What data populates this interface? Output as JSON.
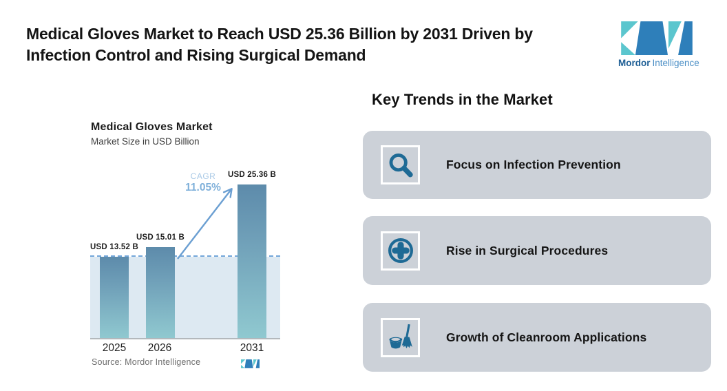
{
  "header": {
    "title": "Medical Gloves Market to Reach USD 25.36 Billion by 2031 Driven by Infection Control and Rising Surgical Demand",
    "title_lines": [
      "Medical Gloves Market to Reach USD 25.36 Billion by 2031 Driven by",
      "Infection Control and Rising Surgical Demand"
    ],
    "brand": {
      "bold": "Mordor",
      "light": "Intelligence"
    }
  },
  "chart": {
    "title": "Medical Gloves Market",
    "subtitle": "Market Size in USD Billion",
    "cagr_label": "CAGR",
    "cagr_value": "11.05%",
    "source": "Source: Mordor Intelligence",
    "bars": [
      {
        "year": "2025",
        "label": "USD 13.52 B",
        "value": 13.52
      },
      {
        "year": "2026",
        "label": "USD 15.01 B",
        "value": 15.01
      },
      {
        "year": "2031",
        "label": "USD 25.36 B",
        "value": 25.36
      }
    ]
  },
  "chart_data": {
    "type": "bar",
    "title": "Medical Gloves Market",
    "subtitle": "Market Size in USD Billion",
    "unit": "USD Billion",
    "categories": [
      "2025",
      "2026",
      "2031"
    ],
    "values": [
      13.52,
      15.01,
      25.36
    ],
    "bar_labels": [
      "USD 13.52 B",
      "USD 15.01 B",
      "USD 25.36 B"
    ],
    "annotations": [
      "CAGR 11.05%"
    ],
    "reference_line_value": 13.52,
    "ylim": [
      0,
      25.36
    ],
    "grid": false,
    "legend": false,
    "source": "Source: Mordor Intelligence"
  },
  "trends": {
    "heading": "Key Trends in the Market",
    "items": [
      {
        "icon": "magnifier-icon",
        "label": "Focus on Infection Prevention"
      },
      {
        "icon": "medical-cross-icon",
        "label": "Rise in Surgical Procedures"
      },
      {
        "icon": "bucket-broom-icon",
        "label": "Growth of Cleanroom Applications"
      }
    ]
  },
  "colors": {
    "accent_teal_icon": "#1e6a95",
    "bar_gradient_top": "#5d8bab",
    "bar_gradient_bottom": "#90c9d0",
    "card_background": "#ccd1d8",
    "dashed_line": "#73a6d9",
    "shade_area": "#dde9f2",
    "cagr_text": "#7fb0da",
    "logo_teal": "#5bc6ce",
    "logo_blue": "#2e7fba",
    "brand_text_dark": "#1d5e95",
    "brand_text_light": "#4a8ec5"
  }
}
